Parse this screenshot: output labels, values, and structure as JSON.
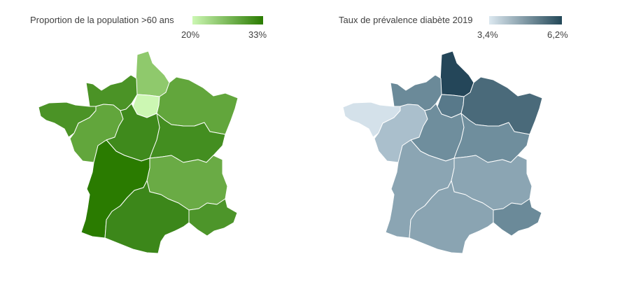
{
  "map_left": {
    "legend": {
      "title": "Proportion de la population >60 ans",
      "min_label": "20%",
      "max_label": "33%",
      "color_low": "#ccf7b3",
      "color_high": "#2a7b00"
    },
    "regions": [
      {
        "id": "hauts-de-france",
        "color": "#8fc96c"
      },
      {
        "id": "normandie",
        "color": "#4b9326"
      },
      {
        "id": "ile-de-france",
        "color": "#ccf7b3"
      },
      {
        "id": "grand-est",
        "color": "#62a63c"
      },
      {
        "id": "bretagne",
        "color": "#4b9326"
      },
      {
        "id": "pays-de-la-loire",
        "color": "#62a63c"
      },
      {
        "id": "centre-val-de-loire",
        "color": "#3f8a1c"
      },
      {
        "id": "bourgogne-franche-comte",
        "color": "#438e20"
      },
      {
        "id": "nouvelle-aquitaine",
        "color": "#2a7b00"
      },
      {
        "id": "auvergne-rhone-alpes",
        "color": "#6aab45"
      },
      {
        "id": "occitanie",
        "color": "#3c871a"
      },
      {
        "id": "provence-alpes-cote-dazur",
        "color": "#4d952a"
      }
    ]
  },
  "map_right": {
    "legend": {
      "title": "Taux de prévalence diabète 2019",
      "min_label": "3,4%",
      "max_label": "6,2%",
      "color_low": "#dce8f0",
      "color_high": "#234858"
    },
    "regions": [
      {
        "id": "hauts-de-france",
        "color": "#244659"
      },
      {
        "id": "normandie",
        "color": "#6b8a99"
      },
      {
        "id": "ile-de-france",
        "color": "#58798a"
      },
      {
        "id": "grand-est",
        "color": "#4a6a7a"
      },
      {
        "id": "bretagne",
        "color": "#d4e1ea"
      },
      {
        "id": "pays-de-la-loire",
        "color": "#aabfcc"
      },
      {
        "id": "centre-val-de-loire",
        "color": "#6f8e9d"
      },
      {
        "id": "bourgogne-franche-comte",
        "color": "#6f8e9d"
      },
      {
        "id": "nouvelle-aquitaine",
        "color": "#8ba5b3"
      },
      {
        "id": "auvergne-rhone-alpes",
        "color": "#8ba5b3"
      },
      {
        "id": "occitanie",
        "color": "#8aa4b2"
      },
      {
        "id": "provence-alpes-cote-dazur",
        "color": "#6b8a99"
      }
    ]
  }
}
